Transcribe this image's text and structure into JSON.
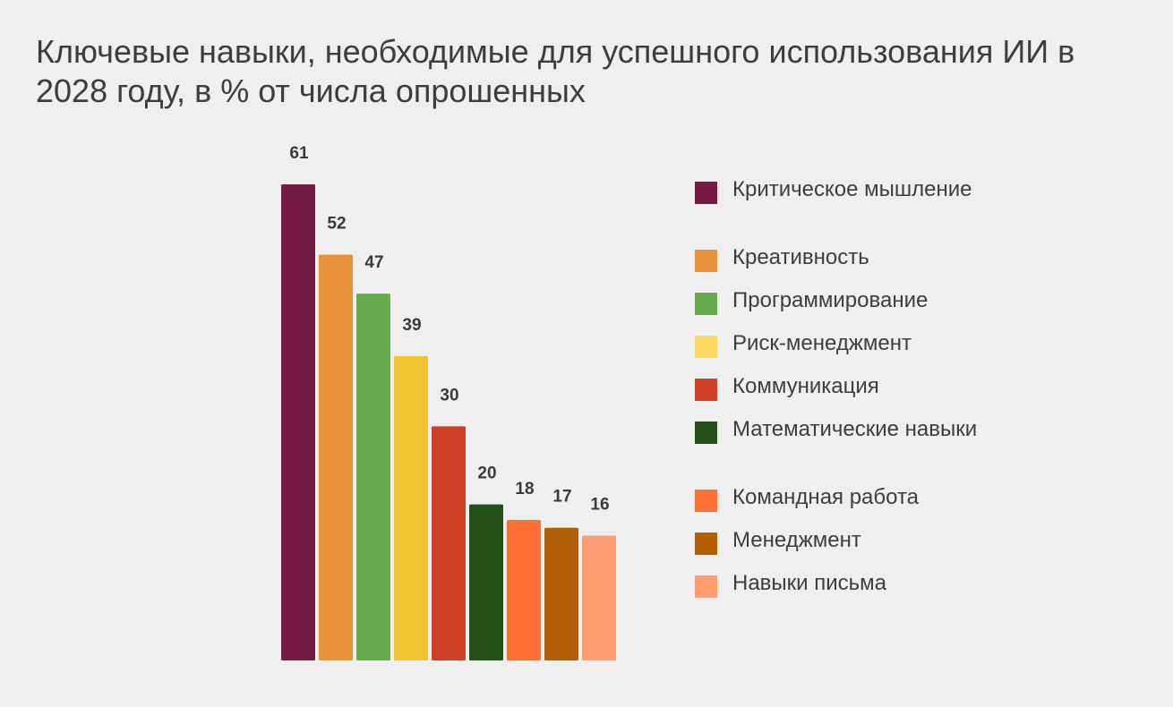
{
  "chart_data": {
    "type": "bar",
    "title": "Ключевые навыки, необходимые для успешного использования ИИ в 2028 году, в % от числа опрошенных",
    "categories": [
      "Критическое мышление",
      "Креативность",
      "Программирование",
      "Риск-менеджмент",
      "Коммуникация",
      "Математические навыки",
      "Командная работа",
      "Менеджмент",
      "Навыки письма"
    ],
    "values": [
      61,
      52,
      47,
      39,
      30,
      20,
      18,
      17,
      16
    ],
    "colors": [
      "#761a45",
      "#e8923a",
      "#6aaa4e",
      "#f2c431",
      "#cf4127",
      "#264f16",
      "#ff7034",
      "#b55d05",
      "#ff9d70"
    ],
    "legend_colors": [
      "#761a45",
      "#e8923a",
      "#6aaa4e",
      "#fed865",
      "#cf4127",
      "#264f16",
      "#ff7034",
      "#b55d05",
      "#ff9d70"
    ],
    "xlabel": "",
    "ylabel": "",
    "ylim": [
      0,
      61
    ],
    "grid": false,
    "legend_position": "right"
  }
}
